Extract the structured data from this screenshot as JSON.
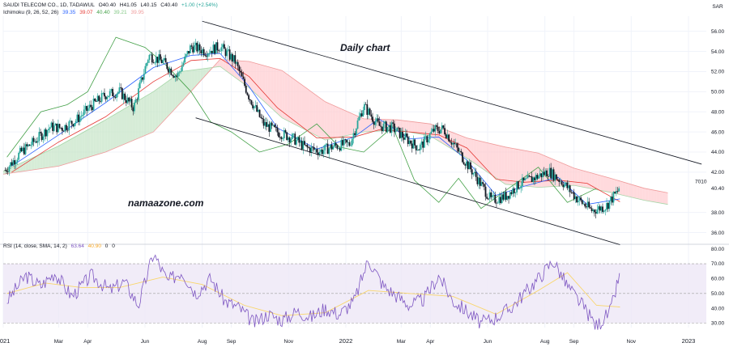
{
  "header": {
    "symbol_line": "SAUDI TELECOM CO., 1D, TADAWUL",
    "ohlc": {
      "open": "O40.40",
      "high": "H41.05",
      "low": "L40.15",
      "close": "C40.40",
      "change": "+1.00 (+2.54%)"
    },
    "ichimoku_label": "Ichimoku (9, 26, 52, 26)",
    "ichimoku_values": [
      "39.35",
      "39.07",
      "40.40",
      "39.21",
      "39.95"
    ],
    "rsi_label": "RSI (14, close, SMA, 14, 2)",
    "rsi_values": [
      "63.64",
      "40.90",
      "0",
      "0"
    ]
  },
  "annotations": {
    "title": "Daily chart",
    "watermark": "namaazone.com"
  },
  "axis": {
    "currency": "SAR",
    "price_ticks": [
      56,
      54,
      52,
      50,
      48,
      46,
      44,
      42,
      40.4,
      38,
      36
    ],
    "rsi_ticks": [
      80,
      70,
      60,
      50,
      40,
      30
    ],
    "x_ticks": [
      "2021",
      "Mar",
      "Apr",
      "Jun",
      "Aug",
      "Sep",
      "Nov",
      "2022",
      "Mar",
      "Apr",
      "Jun",
      "Aug",
      "Sep",
      "Nov",
      "2023"
    ],
    "price_marker": "40.40",
    "side_label": "7010"
  },
  "colors": {
    "up": "#26a69a",
    "down": "#131722",
    "conversion": "#2962ff",
    "base": "#e53935",
    "lagging": "#43a047",
    "cloud_bull": "#c8e6c9",
    "cloud_bear": "#ffcdd2",
    "rsi": "#7e57c2",
    "rsi_ma": "#f9d66b",
    "rsi_band": "#ede7f6",
    "channel": "#131722"
  },
  "chart_data": [
    {
      "type": "candlestick",
      "title": "Daily chart",
      "ylabel": "SAR",
      "ylim": [
        35,
        57.5
      ],
      "x_range": [
        "2021-01-01",
        "2023-01-20"
      ],
      "price_path": [
        [
          "2021-01-03",
          42.2
        ],
        [
          "2021-01-20",
          44.0
        ],
        [
          "2021-02-05",
          45.2
        ],
        [
          "2021-02-20",
          46.5
        ],
        [
          "2021-03-05",
          46.4
        ],
        [
          "2021-03-20",
          47.2
        ],
        [
          "2021-04-05",
          48.6
        ],
        [
          "2021-04-20",
          49.7
        ],
        [
          "2021-05-05",
          50.0
        ],
        [
          "2021-05-20",
          48.4
        ],
        [
          "2021-06-05",
          53.6
        ],
        [
          "2021-06-20",
          53.0
        ],
        [
          "2021-07-05",
          51.5
        ],
        [
          "2021-07-20",
          54.5
        ],
        [
          "2021-08-05",
          54.0
        ],
        [
          "2021-08-20",
          54.5
        ],
        [
          "2021-09-05",
          53.0
        ],
        [
          "2021-09-20",
          49.5
        ],
        [
          "2021-10-05",
          46.8
        ],
        [
          "2021-10-20",
          46.0
        ],
        [
          "2021-11-05",
          45.4
        ],
        [
          "2021-11-20",
          44.4
        ],
        [
          "2021-12-05",
          44.1
        ],
        [
          "2021-12-20",
          44.6
        ],
        [
          "2022-01-05",
          44.8
        ],
        [
          "2022-01-20",
          48.6
        ],
        [
          "2022-02-05",
          46.6
        ],
        [
          "2022-02-20",
          46.4
        ],
        [
          "2022-03-05",
          45.4
        ],
        [
          "2022-03-20",
          44.4
        ],
        [
          "2022-04-05",
          46.2
        ],
        [
          "2022-04-15",
          46.3
        ],
        [
          "2022-05-05",
          43.5
        ],
        [
          "2022-05-20",
          41.5
        ],
        [
          "2022-06-05",
          39.2
        ],
        [
          "2022-06-20",
          39.6
        ],
        [
          "2022-07-05",
          40.8
        ],
        [
          "2022-07-20",
          41.4
        ],
        [
          "2022-08-05",
          42.1
        ],
        [
          "2022-08-20",
          41.0
        ],
        [
          "2022-09-05",
          39.3
        ],
        [
          "2022-09-20",
          38.2
        ],
        [
          "2022-10-05",
          38.6
        ],
        [
          "2022-10-20",
          40.4
        ]
      ],
      "channel": {
        "upper": [
          [
            "2021-08-01",
            57.0
          ],
          [
            "2023-01-15",
            42.8
          ]
        ],
        "lower": [
          [
            "2021-07-25",
            47.4
          ],
          [
            "2022-10-20",
            34.8
          ]
        ]
      },
      "ichimoku": {
        "conversion_line": [
          [
            "2021-01-10",
            42.6
          ],
          [
            "2021-03-01",
            45.7
          ],
          [
            "2021-04-20",
            48.9
          ],
          [
            "2021-06-10",
            52.4
          ],
          [
            "2021-07-20",
            53.6
          ],
          [
            "2021-08-20",
            53.8
          ],
          [
            "2021-09-20",
            50.5
          ],
          [
            "2021-10-20",
            46.4
          ],
          [
            "2021-12-01",
            44.3
          ],
          [
            "2022-01-10",
            45.5
          ],
          [
            "2022-02-05",
            47.3
          ],
          [
            "2022-03-10",
            45.3
          ],
          [
            "2022-04-10",
            45.5
          ],
          [
            "2022-05-10",
            43.2
          ],
          [
            "2022-06-10",
            39.7
          ],
          [
            "2022-07-10",
            40.6
          ],
          [
            "2022-08-15",
            41.5
          ],
          [
            "2022-09-15",
            38.8
          ],
          [
            "2022-10-20",
            39.35
          ]
        ],
        "base_line": [
          [
            "2021-01-10",
            42.0
          ],
          [
            "2021-03-01",
            45.0
          ],
          [
            "2021-04-20",
            47.5
          ],
          [
            "2021-06-10",
            51.0
          ],
          [
            "2021-07-20",
            53.1
          ],
          [
            "2021-08-20",
            53.3
          ],
          [
            "2021-09-20",
            51.5
          ],
          [
            "2021-10-20",
            48.4
          ],
          [
            "2021-12-01",
            45.4
          ],
          [
            "2022-01-10",
            45.5
          ],
          [
            "2022-02-05",
            46.2
          ],
          [
            "2022-03-10",
            46.0
          ],
          [
            "2022-04-10",
            45.7
          ],
          [
            "2022-05-10",
            44.4
          ],
          [
            "2022-06-10",
            41.3
          ],
          [
            "2022-07-10",
            41.0
          ],
          [
            "2022-08-15",
            41.2
          ],
          [
            "2022-09-15",
            40.9
          ],
          [
            "2022-10-20",
            39.07
          ]
        ],
        "lagging_span": [
          [
            "2021-01-05",
            43.5
          ],
          [
            "2021-02-10",
            48.0
          ],
          [
            "2021-03-10",
            48.7
          ],
          [
            "2021-04-01",
            50.0
          ],
          [
            "2021-05-01",
            55.4
          ],
          [
            "2021-06-01",
            54.4
          ],
          [
            "2021-06-25",
            52.5
          ],
          [
            "2021-07-20",
            50.0
          ],
          [
            "2021-08-10",
            47.0
          ],
          [
            "2021-09-01",
            46.0
          ],
          [
            "2021-10-01",
            44.0
          ],
          [
            "2021-11-01",
            44.8
          ],
          [
            "2021-12-01",
            46.8
          ],
          [
            "2021-12-25",
            44.5
          ],
          [
            "2022-01-20",
            44.0
          ],
          [
            "2022-02-20",
            46.5
          ],
          [
            "2022-03-15",
            41.2
          ],
          [
            "2022-04-10",
            39.0
          ],
          [
            "2022-05-01",
            41.4
          ],
          [
            "2022-05-25",
            38.4
          ],
          [
            "2022-06-25",
            40.5
          ],
          [
            "2022-07-25",
            42.5
          ],
          [
            "2022-08-25",
            39.0
          ],
          [
            "2022-09-25",
            40.4
          ]
        ],
        "span_a": [
          [
            "2021-01-01",
            42.1
          ],
          [
            "2021-03-01",
            44.6
          ],
          [
            "2021-04-20",
            47.2
          ],
          [
            "2021-06-10",
            50.0
          ],
          [
            "2021-07-10",
            52.0
          ],
          [
            "2021-08-20",
            52.5
          ],
          [
            "2021-09-20",
            50.4
          ],
          [
            "2021-10-25",
            47.4
          ],
          [
            "2021-12-10",
            45.2
          ],
          [
            "2022-01-20",
            46.0
          ],
          [
            "2022-02-25",
            46.2
          ],
          [
            "2022-04-01",
            45.6
          ],
          [
            "2022-05-10",
            43.4
          ],
          [
            "2022-06-20",
            40.8
          ],
          [
            "2022-07-25",
            40.5
          ],
          [
            "2022-09-01",
            40.7
          ],
          [
            "2022-10-10",
            40.0
          ],
          [
            "2022-11-15",
            39.21
          ],
          [
            "2022-12-10",
            38.8
          ]
        ],
        "span_b": [
          [
            "2021-01-01",
            41.8
          ],
          [
            "2021-03-01",
            42.6
          ],
          [
            "2021-04-20",
            44.0
          ],
          [
            "2021-06-10",
            46.0
          ],
          [
            "2021-07-10",
            49.0
          ],
          [
            "2021-08-20",
            53.2
          ],
          [
            "2021-09-20",
            53.0
          ],
          [
            "2021-10-25",
            52.1
          ],
          [
            "2021-12-10",
            49.0
          ],
          [
            "2022-01-20",
            47.3
          ],
          [
            "2022-02-25",
            47.2
          ],
          [
            "2022-04-01",
            46.8
          ],
          [
            "2022-05-10",
            45.4
          ],
          [
            "2022-06-20",
            44.5
          ],
          [
            "2022-07-25",
            43.9
          ],
          [
            "2022-09-01",
            42.4
          ],
          [
            "2022-10-10",
            41.4
          ],
          [
            "2022-11-15",
            40.4
          ],
          [
            "2022-12-10",
            39.95
          ]
        ]
      }
    },
    {
      "type": "line",
      "title": "RSI (14, close, SMA, 14, 2)",
      "ylim": [
        27,
        82
      ],
      "bands": [
        70,
        50,
        30
      ],
      "rsi": [
        [
          "2021-01-05",
          45
        ],
        [
          "2021-01-25",
          62
        ],
        [
          "2021-02-10",
          55
        ],
        [
          "2021-02-25",
          64
        ],
        [
          "2021-03-15",
          48
        ],
        [
          "2021-04-05",
          62
        ],
        [
          "2021-04-25",
          52
        ],
        [
          "2021-05-10",
          58
        ],
        [
          "2021-05-25",
          42
        ],
        [
          "2021-06-10",
          77
        ],
        [
          "2021-06-25",
          58
        ],
        [
          "2021-07-10",
          65
        ],
        [
          "2021-07-25",
          50
        ],
        [
          "2021-08-10",
          60
        ],
        [
          "2021-08-25",
          45
        ],
        [
          "2021-09-10",
          40
        ],
        [
          "2021-09-25",
          30
        ],
        [
          "2021-10-10",
          36
        ],
        [
          "2021-10-25",
          32
        ],
        [
          "2021-11-10",
          38
        ],
        [
          "2021-11-25",
          34
        ],
        [
          "2021-12-10",
          40
        ],
        [
          "2021-12-25",
          36
        ],
        [
          "2022-01-10",
          45
        ],
        [
          "2022-01-25",
          73
        ],
        [
          "2022-02-10",
          55
        ],
        [
          "2022-02-25",
          48
        ],
        [
          "2022-03-10",
          42
        ],
        [
          "2022-03-25",
          46
        ],
        [
          "2022-04-10",
          62
        ],
        [
          "2022-04-25",
          45
        ],
        [
          "2022-05-10",
          38
        ],
        [
          "2022-05-25",
          30
        ],
        [
          "2022-06-10",
          34
        ],
        [
          "2022-06-25",
          40
        ],
        [
          "2022-07-10",
          50
        ],
        [
          "2022-07-25",
          60
        ],
        [
          "2022-08-10",
          72
        ],
        [
          "2022-08-25",
          55
        ],
        [
          "2022-09-10",
          42
        ],
        [
          "2022-09-25",
          28
        ],
        [
          "2022-10-10",
          38
        ],
        [
          "2022-10-20",
          63.64
        ]
      ],
      "rsi_ma": [
        [
          "2021-01-05",
          50
        ],
        [
          "2021-02-15",
          57
        ],
        [
          "2021-03-25",
          54
        ],
        [
          "2021-05-05",
          54
        ],
        [
          "2021-06-20",
          61
        ],
        [
          "2021-08-01",
          56
        ],
        [
          "2021-09-15",
          42
        ],
        [
          "2021-10-25",
          35
        ],
        [
          "2021-12-10",
          37
        ],
        [
          "2022-01-25",
          52
        ],
        [
          "2022-03-10",
          50
        ],
        [
          "2022-04-25",
          48
        ],
        [
          "2022-06-10",
          36
        ],
        [
          "2022-07-25",
          52
        ],
        [
          "2022-08-25",
          64
        ],
        [
          "2022-09-25",
          42
        ],
        [
          "2022-10-20",
          40.9
        ]
      ]
    }
  ]
}
